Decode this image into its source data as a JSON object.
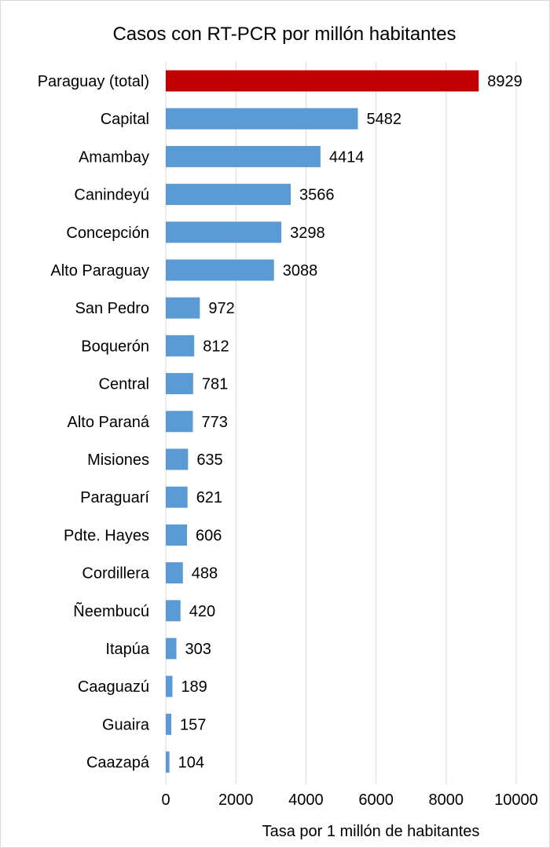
{
  "chart_data": {
    "type": "bar",
    "orientation": "horizontal",
    "title": "Casos con RT-PCR por millón habitantes",
    "xlabel": "Tasa por 1 millón de habitantes",
    "ylabel": "",
    "xlim": [
      0,
      10000
    ],
    "xticks": [
      0,
      2000,
      4000,
      6000,
      8000,
      10000
    ],
    "grid": "vertical",
    "legend": "none",
    "categories": [
      "Paraguay (total)",
      "Capital",
      "Amambay",
      "Canindeyú",
      "Concepción",
      "Alto Paraguay",
      "San Pedro",
      "Boquerón",
      "Central",
      "Alto Paraná",
      "Misiones",
      "Paraguarí",
      "Pdte. Hayes",
      "Cordillera",
      "Ñeembucú",
      "Itapúa",
      "Caaguazú",
      "Guaira",
      "Caazapá"
    ],
    "values": [
      8929,
      5482,
      4414,
      3566,
      3298,
      3088,
      972,
      812,
      781,
      773,
      635,
      621,
      606,
      488,
      420,
      303,
      189,
      157,
      104
    ],
    "bar_colors": [
      "#c00000",
      "#5b9bd5",
      "#5b9bd5",
      "#5b9bd5",
      "#5b9bd5",
      "#5b9bd5",
      "#5b9bd5",
      "#5b9bd5",
      "#5b9bd5",
      "#5b9bd5",
      "#5b9bd5",
      "#5b9bd5",
      "#5b9bd5",
      "#5b9bd5",
      "#5b9bd5",
      "#5b9bd5",
      "#5b9bd5",
      "#5b9bd5",
      "#5b9bd5"
    ],
    "highlight_color": "#c00000",
    "series_color": "#5b9bd5",
    "gridline_color": "#d9d9d9"
  }
}
